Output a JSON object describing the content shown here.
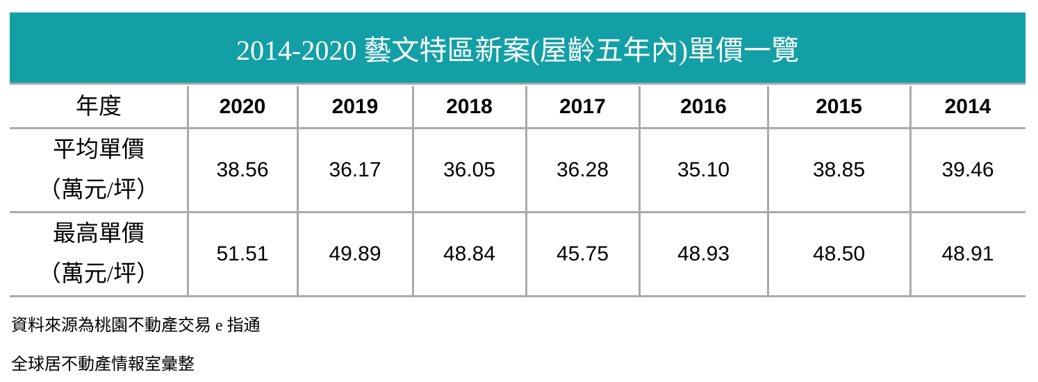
{
  "title": "2014-2020 藝文特區新案(屋齡五年內)單價一覽",
  "table": {
    "header": [
      "年度",
      "2020",
      "2019",
      "2018",
      "2017",
      "2016",
      "2015",
      "2014"
    ],
    "rows": [
      {
        "label": [
          "平均單價",
          "（萬元/坪）"
        ],
        "cells": [
          "38.56",
          "36.17",
          "36.05",
          "36.28",
          "35.10",
          "38.85",
          "39.46"
        ]
      },
      {
        "label": [
          "最高單價",
          "（萬元/坪）"
        ],
        "cells": [
          "51.51",
          "49.89",
          "48.84",
          "45.75",
          "48.93",
          "48.50",
          "48.91"
        ]
      }
    ]
  },
  "notes": [
    "資料來源為桃園不動產交易 e 指通",
    "全球居不動產情報室彙整"
  ]
}
